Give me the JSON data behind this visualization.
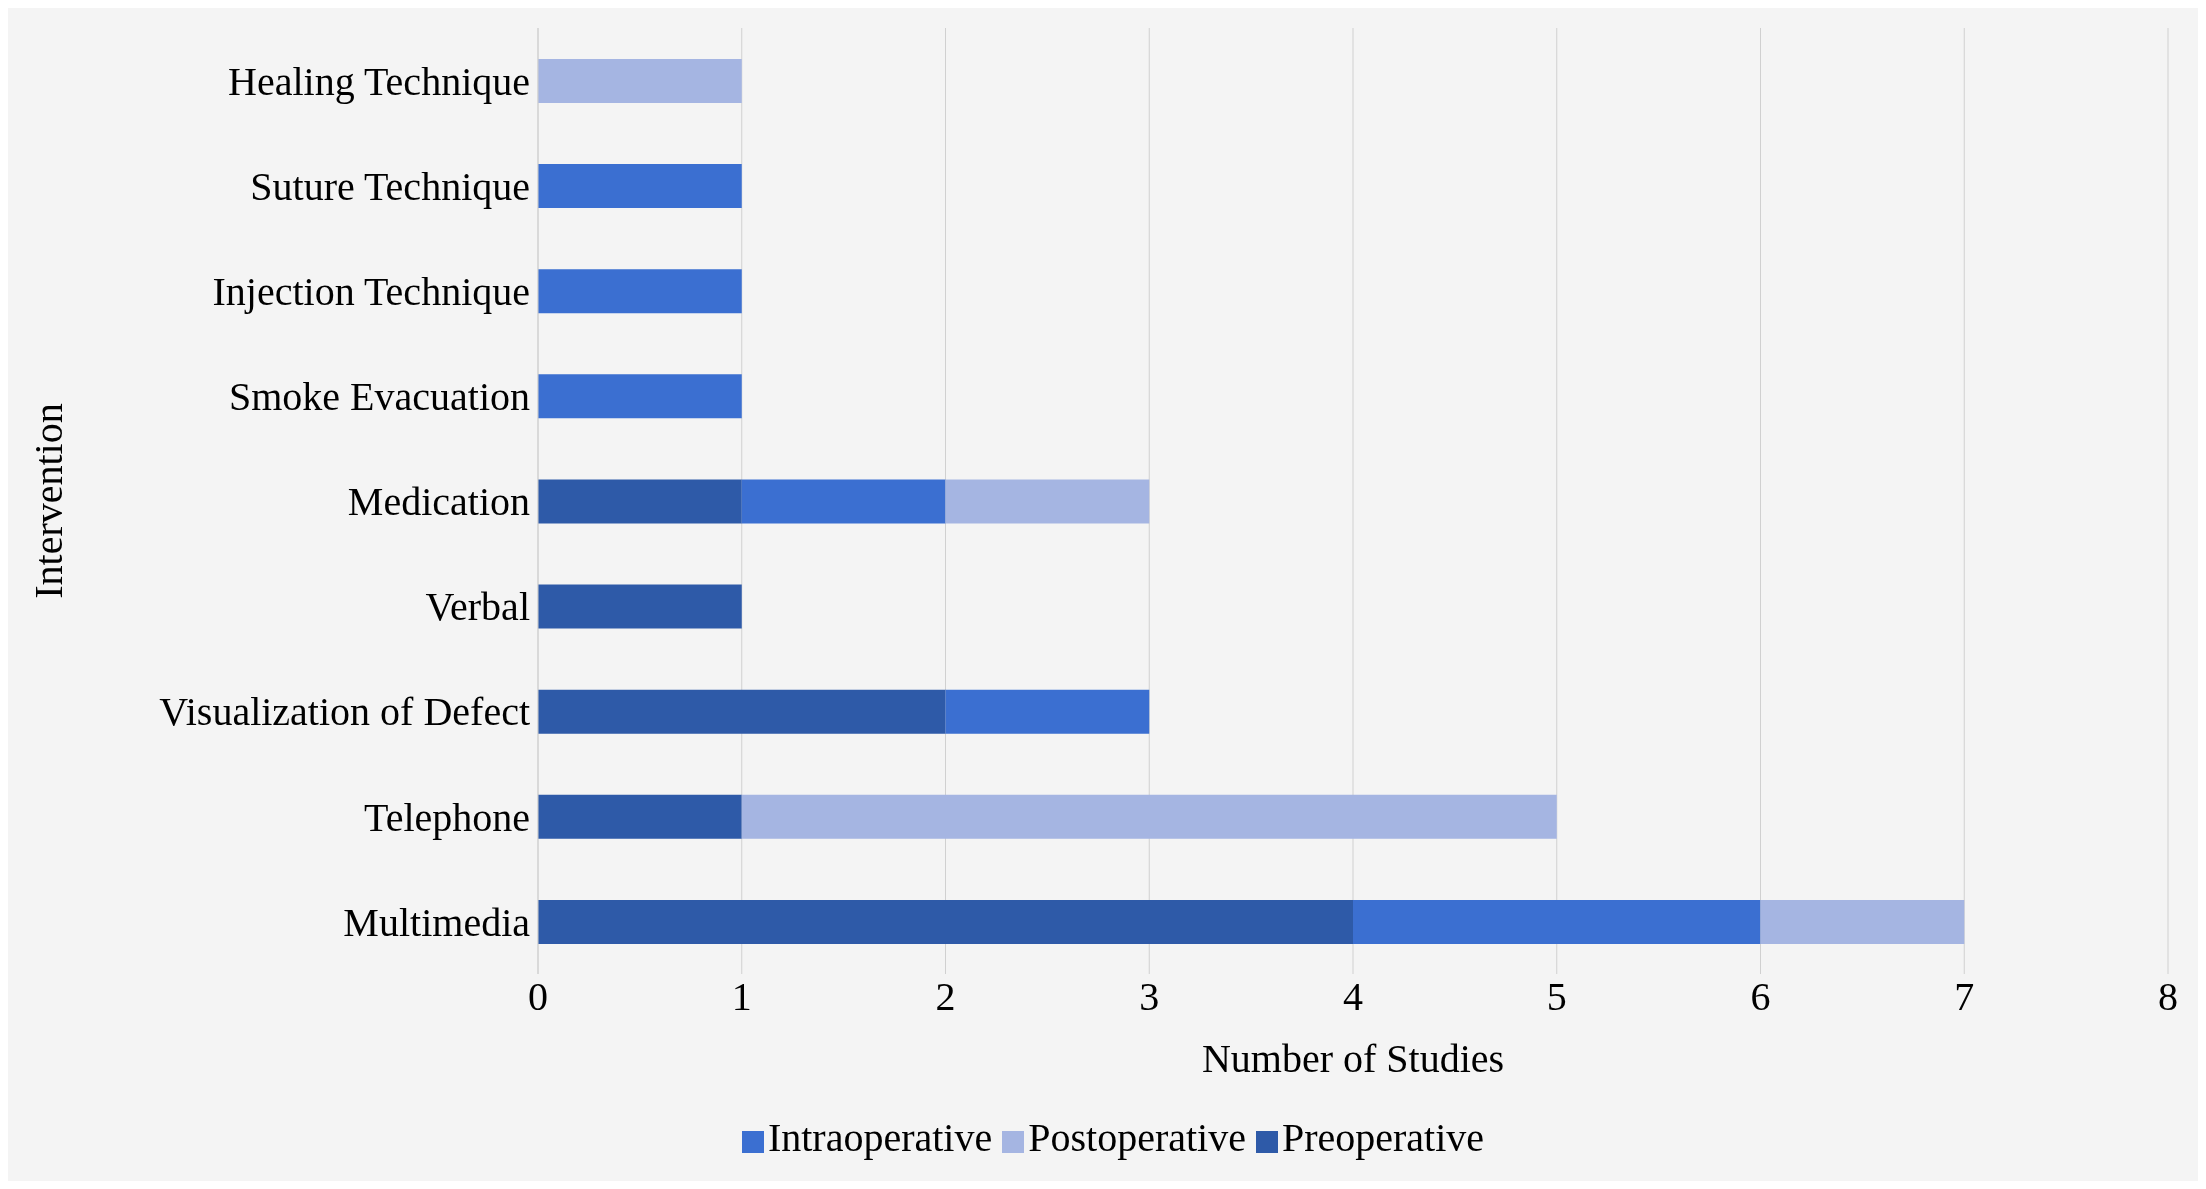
{
  "chart_data": {
    "type": "bar",
    "orientation": "horizontal",
    "stacked": true,
    "xlabel": "Number of Studies",
    "ylabel": "Intervention",
    "categories": [
      "Healing Technique",
      "Suture Technique",
      "Injection Technique",
      "Smoke Evacuation",
      "Medication",
      "Verbal",
      "Visualization of Defect",
      "Telephone",
      "Multimedia"
    ],
    "series": [
      {
        "name": "Preoperative",
        "color": "#2e5aa8",
        "values": [
          0,
          0,
          0,
          0,
          1,
          1,
          2,
          1,
          4
        ]
      },
      {
        "name": "Intraoperative",
        "color": "#3b6fd1",
        "values": [
          0,
          1,
          1,
          1,
          1,
          0,
          1,
          0,
          2
        ]
      },
      {
        "name": "Postoperative",
        "color": "#a5b5e2",
        "values": [
          1,
          0,
          0,
          0,
          1,
          0,
          0,
          4,
          1
        ]
      }
    ],
    "xlim": [
      0,
      8
    ],
    "xticks": [
      0,
      1,
      2,
      3,
      4,
      5,
      6,
      7,
      8
    ],
    "grid": "x",
    "legend": "bottom"
  }
}
